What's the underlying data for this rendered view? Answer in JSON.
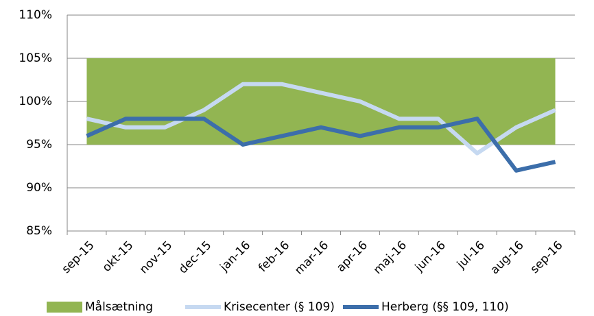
{
  "chart_data": {
    "type": "line",
    "categories": [
      "sep-15",
      "okt-15",
      "nov-15",
      "dec-15",
      "jan-16",
      "feb-16",
      "mar-16",
      "apr-16",
      "maj-16",
      "jun-16",
      "jul-16",
      "aug-16",
      "sep-16"
    ],
    "series": [
      {
        "name": "Målsætning",
        "type": "band",
        "color": "#92b552",
        "lower": [
          95,
          95,
          95,
          95,
          95,
          95,
          95,
          95,
          95,
          95,
          95,
          95,
          95
        ],
        "values": [
          105,
          105,
          105,
          105,
          105,
          105,
          105,
          105,
          105,
          105,
          105,
          105,
          105
        ]
      },
      {
        "name": "Krisecenter (§ 109)",
        "color": "#c6d9f1",
        "values": [
          98,
          97,
          97,
          99,
          102,
          102,
          101,
          100,
          98,
          98,
          94,
          97,
          99
        ]
      },
      {
        "name": "Herberg (§§ 109, 110)",
        "color": "#3c6eaa",
        "values": [
          96,
          98,
          98,
          98,
          95,
          96,
          97,
          96,
          97,
          97,
          98,
          92,
          93
        ]
      }
    ],
    "ylim": [
      85,
      110
    ],
    "yticks": [
      {
        "value": 85,
        "label": "85%"
      },
      {
        "value": 90,
        "label": "90%"
      },
      {
        "value": 95,
        "label": "95%"
      },
      {
        "value": 100,
        "label": "100%"
      },
      {
        "value": 105,
        "label": "105%"
      },
      {
        "value": 110,
        "label": "110%"
      }
    ],
    "grid": true,
    "legend": "bottom"
  }
}
